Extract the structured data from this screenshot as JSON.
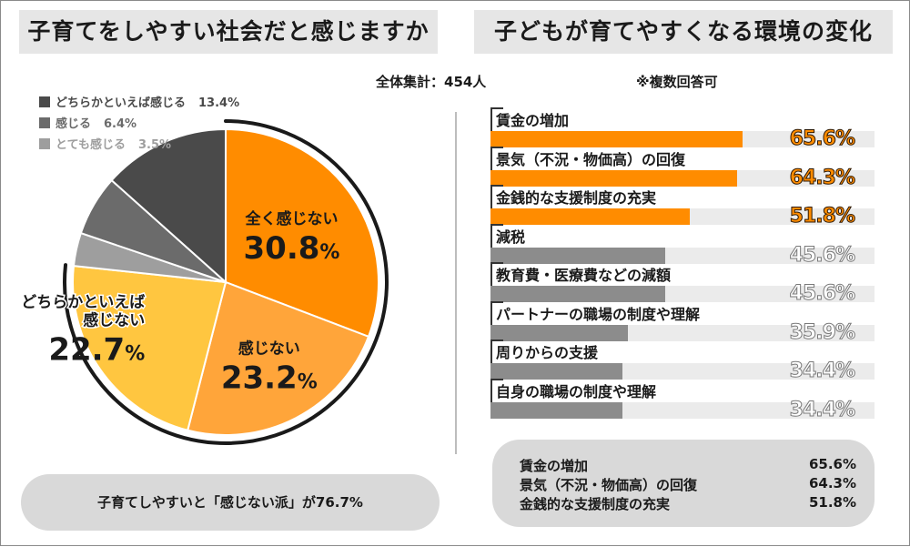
{
  "left_title": "子育てをしやすい社会だと感じますか",
  "right_title": "子どもが育てやすくなる環境の変化",
  "total_label": "全体集計：454人",
  "note_label": "※複数回答可",
  "chart_data": [
    {
      "type": "pie",
      "title": "子育てをしやすい社会だと感じますか",
      "slices": [
        {
          "label": "全く感じない",
          "value": 30.8,
          "pct_text": "30.8",
          "color": "#ff8c00"
        },
        {
          "label": "感じない",
          "value": 23.2,
          "pct_text": "23.2",
          "color": "#ffa53a"
        },
        {
          "label": "どちらかといえば\n感じない",
          "value": 22.7,
          "pct_text": "22.7",
          "color": "#ffc640"
        },
        {
          "label": "とても感じる",
          "value": 3.5,
          "pct_text": "3.5%",
          "color": "#9e9e9e"
        },
        {
          "label": "感じる",
          "value": 6.4,
          "pct_text": "6.4%",
          "color": "#6b6b6b"
        },
        {
          "label": "どちらかといえば感じる",
          "value": 13.4,
          "pct_text": "13.4%",
          "color": "#4a4a4a"
        }
      ],
      "legend_order": [
        5,
        4,
        3
      ],
      "percent_sign": "%",
      "annotation": "子育てしやすいと「感じない派」が76.7%"
    },
    {
      "type": "bar",
      "title": "子どもが育てやすくなる環境の変化",
      "xlim": [
        0,
        100
      ],
      "categories": [
        "賃金の増加",
        "景気（不況・物価高）の回復",
        "金銭的な支援制度の充実",
        "減税",
        "教育費・医療費などの減額",
        "パートナーの職場の制度や理解",
        "周りからの支援",
        "自身の職場の制度や理解"
      ],
      "values": [
        65.6,
        64.3,
        51.8,
        45.6,
        45.6,
        35.9,
        34.4,
        34.4
      ],
      "value_labels": [
        "65.6%",
        "64.3%",
        "51.8%",
        "45.6%",
        "45.6%",
        "35.9%",
        "34.4%",
        "34.4%"
      ],
      "highlight_count": 3
    }
  ],
  "colors": {
    "accent": "#ff8c00",
    "bar_gray": "#8c8c8c",
    "track": "#ebebeb"
  },
  "top3": [
    {
      "label": "賃金の増加",
      "value": "65.6%"
    },
    {
      "label": "景気（不況・物価高）の回復",
      "value": "64.3%"
    },
    {
      "label": "金銭的な支援制度の充実",
      "value": "51.8%"
    }
  ]
}
